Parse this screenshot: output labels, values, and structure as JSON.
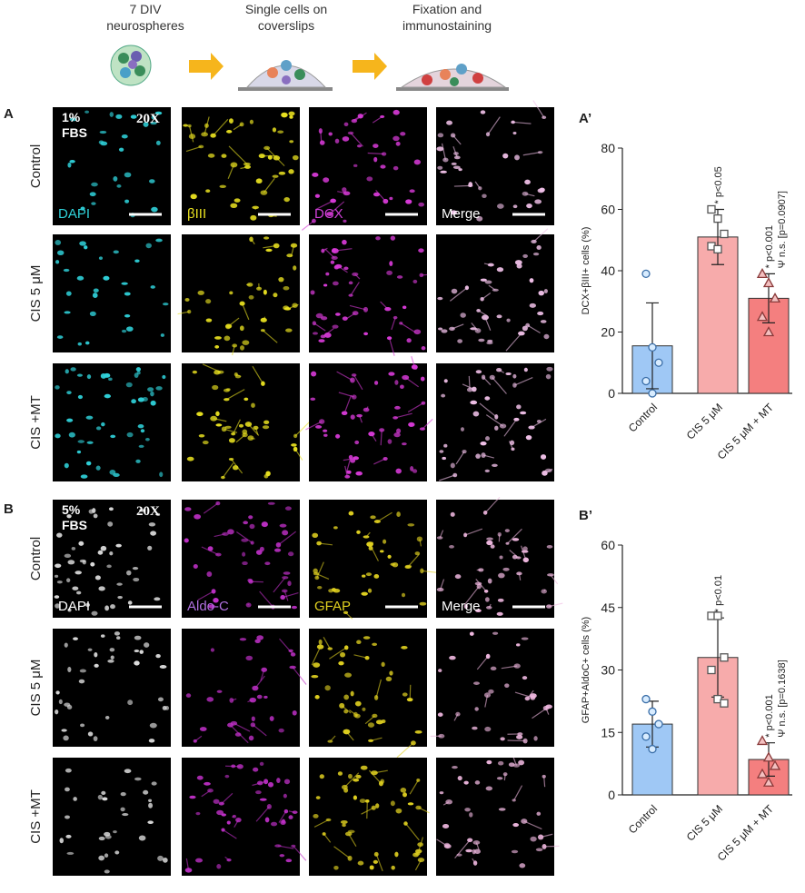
{
  "schematic": {
    "steps": [
      [
        "7 DIV",
        "neurospheres"
      ],
      [
        "Single cells on",
        "coverslips"
      ],
      [
        "Fixation and",
        "immunostaining"
      ]
    ]
  },
  "panels": [
    {
      "label": "A",
      "media": [
        "1%",
        "FBS"
      ],
      "magnification": "20X",
      "channels": [
        "DAPI",
        "βIII",
        "DCX",
        "Merge"
      ],
      "rows": [
        "Control",
        "CIS 5 μM",
        "CIS  +MT"
      ]
    },
    {
      "label": "B",
      "media": [
        "5%",
        "FBS"
      ],
      "magnification": "20X",
      "channels": [
        "DAPI",
        "Aldo-C",
        "GFAP",
        "Merge"
      ],
      "rows": [
        "Control",
        "CIS 5 μM",
        "CIS +MT"
      ]
    }
  ],
  "chart_data": [
    {
      "type": "bar",
      "panel_label": "A’",
      "y_label": "DCX+βIII+ cells (%)",
      "categories": [
        "Control",
        "CIS 5 μM",
        "CIS 5 μM + MT"
      ],
      "values": [
        15.5,
        51,
        31
      ],
      "errors": [
        14,
        9,
        8
      ],
      "points": [
        [
          39,
          15,
          10,
          4,
          0
        ],
        [
          60,
          57,
          52,
          48,
          47
        ],
        [
          39,
          36,
          31,
          25,
          20
        ]
      ],
      "colors": [
        "#9fc8f5",
        "#f7abab",
        "#f47f7f"
      ],
      "marker_shapes": [
        "circle",
        "square",
        "triangle"
      ],
      "annotations": [
        null,
        [
          "* p<0.05"
        ],
        [
          "* p<0.001",
          "Ψ n.s. [p=0.0907]"
        ]
      ],
      "ylim": [
        0,
        80
      ],
      "yticks": [
        0,
        20,
        40,
        60,
        80
      ]
    },
    {
      "type": "bar",
      "panel_label": "B’",
      "y_label": "GFAP+AldoC+ cells (%)",
      "categories": [
        "Control",
        "CIS 5 μM",
        "CIS 5 μM + MT"
      ],
      "values": [
        17,
        33,
        8.5
      ],
      "errors": [
        5.5,
        9.5,
        4
      ],
      "points": [
        [
          23,
          20,
          17,
          14,
          11
        ],
        [
          43,
          43,
          33,
          30,
          23,
          22
        ],
        [
          13,
          9,
          7,
          5,
          3
        ]
      ],
      "colors": [
        "#9fc8f5",
        "#f7abab",
        "#f47f7f"
      ],
      "marker_shapes": [
        "circle",
        "square",
        "triangle"
      ],
      "annotations": [
        null,
        [
          "* p<0.01"
        ],
        [
          "* p<0.001",
          "Ψ n.s. [p=0.1638]"
        ]
      ],
      "ylim": [
        0,
        60
      ],
      "yticks": [
        0,
        15,
        30,
        45,
        60
      ]
    }
  ]
}
